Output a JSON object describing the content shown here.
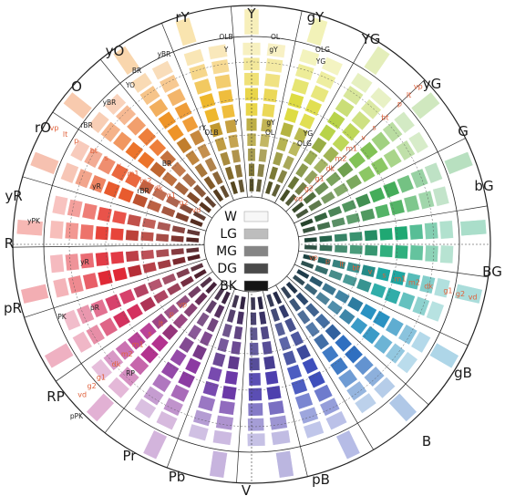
{
  "hues": [
    {
      "label": "Y",
      "color": "#e9d54a"
    },
    {
      "label": "gY",
      "color": "#dedc43"
    },
    {
      "label": "YG",
      "color": "#b8d34a"
    },
    {
      "label": "yG",
      "color": "#82c256"
    },
    {
      "label": "G",
      "color": "#45ad5a"
    },
    {
      "label": "bG",
      "color": "#1fa873"
    },
    {
      "label": "BG",
      "color": "#1fa6a1"
    },
    {
      "label": "gB",
      "color": "#2a92c2"
    },
    {
      "label": "B",
      "color": "#2f6fc0"
    },
    {
      "label": "pB",
      "color": "#3e4fbc"
    },
    {
      "label": "V",
      "color": "#4d3fae"
    },
    {
      "label": "Pb",
      "color": "#6c3aa8"
    },
    {
      "label": "Pr",
      "color": "#8c3aa2"
    },
    {
      "label": "RP",
      "color": "#b3338f"
    },
    {
      "label": "pR",
      "color": "#d4325f"
    },
    {
      "label": "R",
      "color": "#e02a36"
    },
    {
      "label": "yR",
      "color": "#e7443a"
    },
    {
      "label": "rO",
      "color": "#e85b2e"
    },
    {
      "label": "O",
      "color": "#ec742b"
    },
    {
      "label": "yO",
      "color": "#ee9428"
    },
    {
      "label": "rY",
      "color": "#eeb72c"
    }
  ],
  "tone_labels_ne": [
    "vp",
    "lt",
    "p",
    "bt",
    "s",
    "v",
    "m1",
    "m2",
    "dk",
    "g1",
    "g2",
    "vd"
  ],
  "tone_labels_se": [
    "vd",
    "g2",
    "g1",
    "dk",
    "m2",
    "m1",
    "s",
    "v",
    "bt",
    "lt",
    "p",
    "vp"
  ],
  "tone_labels_sw": [
    "vd",
    "g2",
    "g1",
    "dk",
    "m2",
    "m1",
    "s",
    "lt",
    "p",
    "vp"
  ],
  "tone_labels_nw": [
    "vp",
    "lt",
    "p",
    "bt",
    "s",
    "v",
    "m1",
    "m2",
    "dk",
    "g1",
    "g2",
    "vd"
  ],
  "inner_labels": [
    "OLB",
    "OL",
    "OLG",
    "Y",
    "gY",
    "YG",
    "yBR",
    "BR",
    "YO",
    "yBR",
    "rBR",
    "RP",
    "PK",
    "pR",
    "BR",
    "rBR",
    "yR",
    "yPK",
    "rY",
    "Y",
    "gY",
    "YG",
    "OLB",
    "OL",
    "OLG",
    "pPK",
    "yR"
  ],
  "grays": [
    {
      "label": "W",
      "color": "#f7f7f7"
    },
    {
      "label": "LG",
      "color": "#bdbdbd"
    },
    {
      "label": "MG",
      "color": "#858585"
    },
    {
      "label": "DG",
      "color": "#4a4a4a"
    },
    {
      "label": "BK",
      "color": "#151515"
    }
  ]
}
